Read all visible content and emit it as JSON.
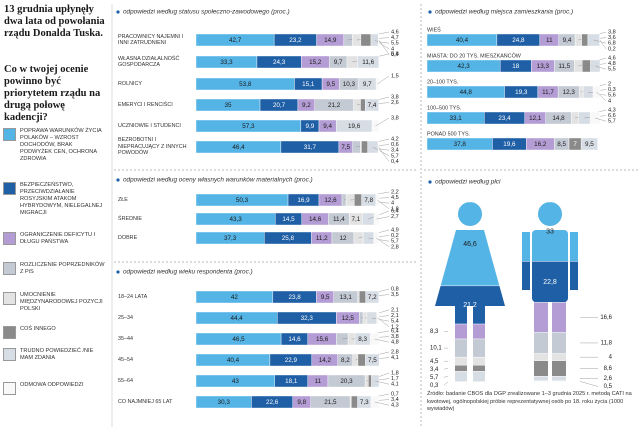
{
  "header": {
    "title": "13 grudnia upłynęły dwa lata od powołania rządu Donalda Tuska.",
    "question": "Co w twojej ocenie powinno być priorytetem rządu na drugą połowę kadencji?"
  },
  "legend": [
    {
      "label": "POPRAWA WARUNKÓW ŻYCIA POLAKÓW – WZROST DOCHODÓW, BRAK PODWYŻEK CEN, OCHRONA ZDROWIA",
      "color": "#55b4e6"
    },
    {
      "label": "BEZPIECZEŃSTWO, PRZECIWDZIAŁANIE ROSYJSKIM ATAKOM HYBRYDOWYM, NIELEGALNEJ MIGRACJI",
      "color": "#1f5fa6"
    },
    {
      "label": "OGRANICZENIE DEFICYTU I DŁUGU PAŃSTWA",
      "color": "#b49cd4"
    },
    {
      "label": "ROZLICZENIE POPRZEDNIKÓW Z PiS",
      "color": "#c3cad3"
    },
    {
      "label": "UMOCNIENIE MIĘDZYNARODOWEJ POZYCJI POLSKI",
      "color": "#e3e3e3"
    },
    {
      "label": "COŚ INNEGO",
      "color": "#8a8a8a"
    },
    {
      "label": "TRUDNO POWIEDZIEĆ /NIE MAM ZDANIA",
      "color": "#d7dde5"
    },
    {
      "label": "ODMOWA ODPOWIEDZI",
      "color": "#f8f8f8"
    }
  ],
  "sections": [
    {
      "heading": "odpowiedzi według statusu społeczno-zawodowego (proc.)",
      "rows": [
        {
          "label": "PRACOWNICY NAJEMNI I INNI ZATRUDNIENI",
          "values": [
            42.7,
            23.2,
            14.9,
            4.6,
            4.7,
            5.5,
            4,
            0.4
          ],
          "value_labels": [
            "42,7",
            "23,2",
            "14,9",
            "4,6",
            "4,7",
            "5,5",
            "4",
            "0,4"
          ]
        },
        {
          "label": "WŁASNA DZIAŁALNOŚĆ GOSPODARCZA",
          "values": [
            33.3,
            24.3,
            15.2,
            9.7,
            5.8,
            null,
            11.6,
            null
          ],
          "value_labels": [
            "33,3",
            "24,3",
            "15,2",
            "9,7",
            "5,8",
            null,
            "11,6",
            null
          ]
        },
        {
          "label": "ROLNICY",
          "values": [
            53.8,
            15.1,
            9.5,
            10.3,
            null,
            null,
            9.7,
            1.5
          ],
          "value_labels": [
            "53,8",
            "15,1",
            "9,5",
            "10,3",
            null,
            null,
            "9,7",
            "1,5"
          ]
        },
        {
          "label": "EMERYCI I RENCIŚCI",
          "values": [
            35,
            20.7,
            9.2,
            21.2,
            3.8,
            2.6,
            7.4,
            null
          ],
          "value_labels": [
            "35",
            "20,7",
            "9,2",
            "21,2",
            "3,8",
            "2,6",
            "7,4",
            null
          ]
        },
        {
          "label": "UCZNIOWIE I STUDENCI",
          "values": [
            57.3,
            9.9,
            9.4,
            null,
            null,
            null,
            19.6,
            3.8
          ],
          "value_labels": [
            "57,3",
            "9,9",
            "9,4",
            null,
            null,
            null,
            "19,6",
            "3,8"
          ]
        },
        {
          "label": "BEZROBOTNI I NIEPRACUJĄCY Z INNYCH POWODÓW",
          "values": [
            46.4,
            31.7,
            7.5,
            4.2,
            0.6,
            3.4,
            5.7,
            0.4
          ],
          "value_labels": [
            "46,4",
            "31,7",
            "7,5",
            "4,2",
            "0,6",
            "3,4",
            "5,7",
            "0,4"
          ]
        }
      ]
    },
    {
      "heading": "odpowiedzi według oceny własnych warunków materialnych (proc.)",
      "rows": [
        {
          "label": "ZŁE",
          "values": [
            50.3,
            16.9,
            12.6,
            2.2,
            4.5,
            4,
            7.8,
            1.8
          ],
          "value_labels": [
            "50,3",
            "16,9",
            "12,6",
            "2,2",
            "4,5",
            "4",
            "7,8",
            "1,8"
          ]
        },
        {
          "label": "ŚREDNIE",
          "values": [
            43.3,
            14.5,
            14.6,
            11.4,
            7.1,
            null,
            6.4,
            2.7
          ],
          "value_labels": [
            "43,3",
            "14,5",
            "14,6",
            "11,4",
            "7,1",
            null,
            "6,4",
            "2,7"
          ]
        },
        {
          "label": "DOBRE",
          "values": [
            37.3,
            25.8,
            11.2,
            12,
            4.9,
            0.2,
            5.7,
            2.8
          ],
          "value_labels": [
            "37,3",
            "25,8",
            "11,2",
            "12",
            "4,9",
            "0,2",
            "5,7",
            "2,8"
          ]
        }
      ]
    },
    {
      "heading": "odpowiedzi według wieku respondenta (proc.)",
      "rows": [
        {
          "label": "18–24 LATA",
          "values": [
            42,
            23.8,
            9.5,
            13.1,
            0.8,
            3.5,
            7.2,
            null
          ],
          "value_labels": [
            "42",
            "23,8",
            "9,5",
            "13,1",
            "0,8",
            "3,5",
            "7,2",
            null
          ]
        },
        {
          "label": "25–34",
          "values": [
            44.4,
            32.3,
            12.5,
            2.1,
            2.1,
            null,
            5.4,
            1.2
          ],
          "value_labels": [
            "44,4",
            "32,3",
            "12,5",
            "2,1",
            "2,1",
            null,
            "5,4",
            "1,2"
          ]
        },
        {
          "label": "35–44",
          "values": [
            46.5,
            14.6,
            15.6,
            6.4,
            3.8,
            null,
            8.3,
            4.8
          ],
          "value_labels": [
            "46,5",
            "14,6",
            "15,6",
            "6,4",
            "3,8",
            null,
            "8,3",
            "4,8"
          ]
        },
        {
          "label": "45–54",
          "values": [
            40.4,
            22.9,
            14.2,
            8.2,
            2.8,
            4.1,
            7.5,
            null
          ],
          "value_labels": [
            "40,4",
            "22,9",
            "14,2",
            "8,2",
            "2,8",
            "4,1",
            "7,5",
            null
          ]
        },
        {
          "label": "55–64",
          "values": [
            43,
            18.1,
            11,
            20.3,
            1.8,
            1.7,
            4.1,
            null
          ],
          "value_labels": [
            "43",
            "18,1",
            "11",
            "20,3",
            "1,8",
            "1,7",
            "4,1",
            null
          ]
        },
        {
          "label": "CO NAJMNIEJ 65 LAT",
          "values": [
            30.3,
            22.6,
            9.8,
            21.5,
            0.7,
            3.4,
            7.3,
            4.3
          ],
          "value_labels": [
            "30,3",
            "22,6",
            "9,8",
            "21,5",
            "0,7",
            "3,4",
            "7,3",
            "4,3"
          ]
        }
      ]
    },
    {
      "heading": "odpowiedzi według miejsca zamieszkania (proc.)",
      "rows": [
        {
          "label": "WIEŚ",
          "values": [
            40.4,
            24.8,
            11,
            9.4,
            3.8,
            3.6,
            6.8,
            0.2
          ],
          "value_labels": [
            "40,4",
            "24,8",
            "11",
            "9,4",
            "3,8",
            "3,6",
            "6,8",
            "0,2"
          ]
        },
        {
          "label": "MIASTA: DO 20 TYS. MIESZKAŃCÓW",
          "values": [
            42.3,
            18,
            13.3,
            11.5,
            4.6,
            4.8,
            5.5,
            null
          ],
          "value_labels": [
            "42,3",
            "18",
            "13,3",
            "11,5",
            "4,6",
            "4,8",
            "5,5",
            null
          ]
        },
        {
          "label": "20–100 TYS.",
          "values": [
            44.8,
            19.3,
            11.7,
            12.3,
            2,
            0.3,
            5.6,
            4
          ],
          "value_labels": [
            "44,8",
            "19,3",
            "11,7",
            "12,3",
            "2",
            "0,3",
            "5,6",
            "4"
          ]
        },
        {
          "label": "100–500 TYS.",
          "values": [
            33.1,
            23.4,
            12.1,
            14.8,
            4.3,
            null,
            6.6,
            5.7
          ],
          "value_labels": [
            "33,1",
            "23,4",
            "12,1",
            "14,8",
            "4,3",
            null,
            "6,6",
            "5,7"
          ]
        },
        {
          "label": "PONAD 500 TYS.",
          "values": [
            37.8,
            19.6,
            16.2,
            8.5,
            null,
            7,
            9.5,
            null
          ],
          "value_labels": [
            "37,8",
            "19,6",
            "16,2",
            "8,5",
            null,
            "7",
            "9,5",
            null
          ]
        }
      ]
    }
  ],
  "gender": {
    "heading": "odpowiedzi według płci",
    "groups": [
      {
        "values": [
          46.6,
          21.2,
          8.3,
          10.1,
          4.5,
          3.4,
          5.7,
          0.3
        ],
        "value_labels": [
          "46,6",
          "21,2",
          "8,3",
          "10,1",
          "4,5",
          "3,4",
          "5,7",
          "0,3"
        ]
      },
      {
        "values": [
          33,
          22.8,
          16.6,
          11.8,
          4,
          8.6,
          2.6,
          0.5
        ],
        "value_labels": [
          "33",
          "22,8",
          "16,6",
          "11,8",
          "4",
          "8,6",
          "2,6",
          "0,5"
        ]
      }
    ]
  },
  "source": "Źródło: badanie CBOS dla DGP zrealizowane 1–3 grudnia 2025 r. metodą CATI na kwotowej, ogólnopolskiej próbie reprezentatywnej osób po 18. roku życia (1000 wywiadów)"
}
